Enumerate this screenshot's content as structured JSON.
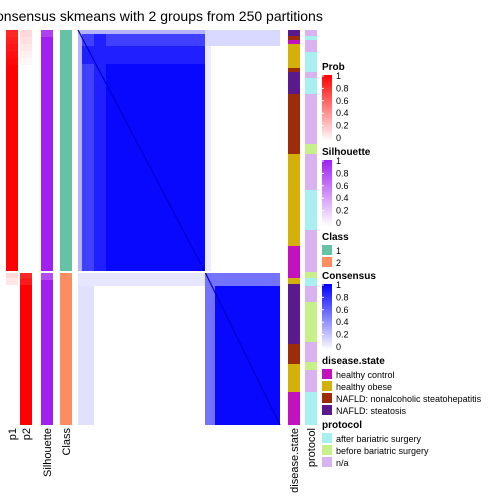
{
  "title": "onsensus skmeans with 2 groups from 250 partitions",
  "colors": {
    "prob_high": "#ff0000",
    "prob_low": "#ffffff",
    "silhouette_high": "#a020f0",
    "silhouette_low": "#ffffff",
    "class_1": "#66c2a5",
    "class_2": "#fc8d62",
    "consensus_high": "#0000ff",
    "consensus_low": "#ffffff",
    "healthy_control": "#c212bd",
    "healthy_obese": "#d4b00a",
    "nafld_nash": "#9b2d0a",
    "nafld_steatosis": "#5a1a8c",
    "after_bariatric": "#a8f0f0",
    "before_bariatric": "#c8f08a",
    "na": "#d9b3f0"
  },
  "chart_data": {
    "type": "heatmap",
    "title": "onsensus skmeans with 2 groups from 250 partitions",
    "groups": [
      {
        "class": 1,
        "count": 34
      },
      {
        "class": 2,
        "count": 20
      }
    ],
    "column_labels": [
      "p1",
      "p2",
      "Silhouette",
      "Class",
      "disease.state",
      "protocol"
    ],
    "legends": [
      {
        "title": "Prob",
        "type": "gradient",
        "ticks": [
          "1",
          "0.8",
          "0.6",
          "0.4",
          "0.2",
          "0"
        ]
      },
      {
        "title": "Silhouette",
        "type": "gradient",
        "ticks": [
          "1",
          "0.8",
          "0.6",
          "0.4",
          "0.2",
          "0"
        ]
      },
      {
        "title": "Class",
        "type": "discrete",
        "items": [
          "1",
          "2"
        ]
      },
      {
        "title": "Consensus",
        "type": "gradient",
        "ticks": [
          "1",
          "0.8",
          "0.6",
          "0.4",
          "0.2",
          "0"
        ]
      },
      {
        "title": "disease.state",
        "type": "discrete",
        "items": [
          "healthy control",
          "healthy obese",
          "NAFLD: nonalcoholic steatohepatitis",
          "NAFLD: steatosis"
        ]
      },
      {
        "title": "protocol",
        "type": "discrete",
        "items": [
          "after bariatric surgery",
          "before bariatric surgery",
          "n/a"
        ]
      }
    ]
  }
}
